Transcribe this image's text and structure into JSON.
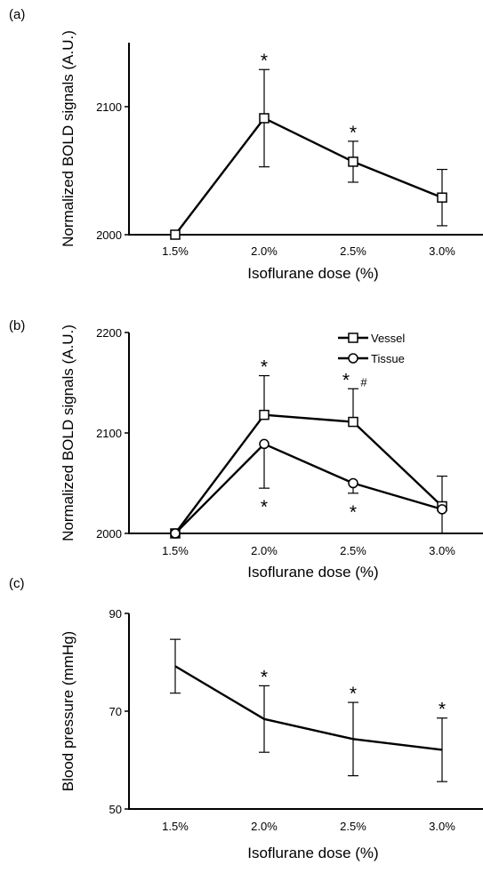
{
  "chart_data": [
    {
      "panel_label": "(a)",
      "type": "line",
      "categories": [
        "1.5%",
        "2.0%",
        "2.5%",
        "3.0%"
      ],
      "xlabel": "Isoflurane dose (%)",
      "ylabel": "Normalized BOLD signals (A.U.)",
      "ylim": [
        2000,
        2150
      ],
      "yticks": [
        2000,
        2100
      ],
      "series": [
        {
          "name": "",
          "marker": "square",
          "values": [
            2000,
            2091,
            2057,
            2029
          ],
          "err_up": [
            0,
            38,
            16,
            22
          ],
          "err_down": [
            0,
            38,
            16,
            22
          ]
        }
      ],
      "annotations": [
        {
          "category": "2.0%",
          "text": "*",
          "position": "above"
        },
        {
          "category": "2.5%",
          "text": "*",
          "position": "above"
        }
      ]
    },
    {
      "panel_label": "(b)",
      "type": "line",
      "categories": [
        "1.5%",
        "2.0%",
        "2.5%",
        "3.0%"
      ],
      "xlabel": "Isoflurane dose (%)",
      "ylabel": "Normalized BOLD signals (A.U.)",
      "ylim": [
        2000,
        2200
      ],
      "yticks": [
        2000,
        2100,
        2200
      ],
      "legend": "top-right",
      "series": [
        {
          "name": "Vessel",
          "marker": "square",
          "values": [
            2000,
            2118,
            2111,
            2027
          ],
          "err_up": [
            0,
            39,
            33,
            30
          ],
          "err_down": [
            0,
            0,
            0,
            0
          ]
        },
        {
          "name": "Tissue",
          "marker": "circle",
          "values": [
            2000,
            2089,
            2050,
            2024
          ],
          "err_up": [
            0,
            0,
            0,
            0
          ],
          "err_down": [
            0,
            44,
            10,
            24
          ]
        }
      ],
      "annotations": [
        {
          "category": "2.0%",
          "text": "*",
          "position": "above"
        },
        {
          "category": "2.5%",
          "text": "*",
          "position": "above"
        },
        {
          "category": "2.5%",
          "text": "#",
          "position": "above"
        },
        {
          "category": "2.0%",
          "text": "*",
          "position": "below"
        },
        {
          "category": "2.5%",
          "text": "*",
          "position": "below"
        }
      ]
    },
    {
      "panel_label": "(c)",
      "type": "line",
      "categories": [
        "1.5%",
        "2.0%",
        "2.5%",
        "3.0%"
      ],
      "xlabel": "Isoflurane dose (%)",
      "ylabel": "Blood pressure (mmHg)",
      "ylim": [
        50,
        90
      ],
      "yticks": [
        50,
        70,
        90
      ],
      "series": [
        {
          "name": "",
          "marker": "none",
          "values": [
            79.2,
            68.4,
            64.3,
            62.1
          ],
          "err_up": [
            5.5,
            6.8,
            7.5,
            6.5
          ],
          "err_down": [
            5.5,
            6.8,
            7.5,
            6.5
          ]
        }
      ],
      "annotations": [
        {
          "category": "2.0%",
          "text": "*",
          "position": "above"
        },
        {
          "category": "2.5%",
          "text": "*",
          "position": "above"
        },
        {
          "category": "3.0%",
          "text": "*",
          "position": "above"
        }
      ]
    }
  ]
}
